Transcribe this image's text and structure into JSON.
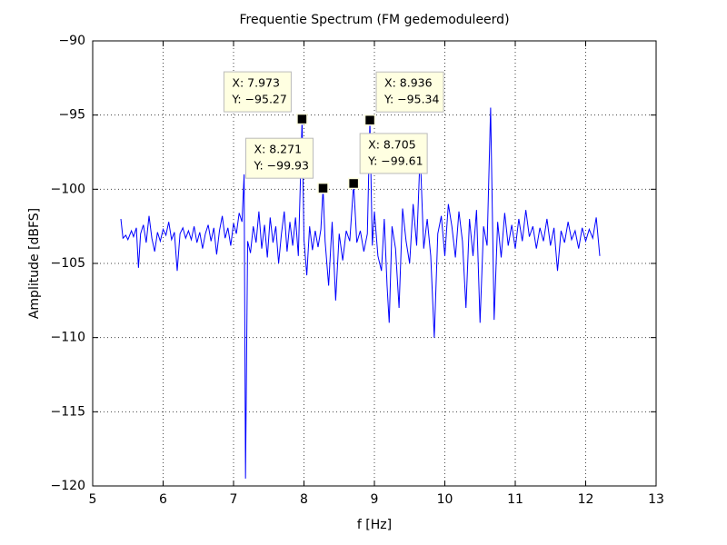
{
  "chart_data": {
    "type": "line",
    "title": "Frequentie Spectrum (FM gedemoduleerd)",
    "xlabel": "f [Hz]",
    "ylabel": "Amplitude [dBFS]",
    "xlim": [
      5,
      13
    ],
    "ylim": [
      -120,
      -90
    ],
    "xticks": [
      5,
      6,
      7,
      8,
      9,
      10,
      11,
      12,
      13
    ],
    "yticks": [
      {
        "value": -90,
        "label": "−90"
      },
      {
        "value": -95,
        "label": "−95"
      },
      {
        "value": -100,
        "label": "−100"
      },
      {
        "value": -105,
        "label": "−105"
      },
      {
        "value": -110,
        "label": "−110"
      },
      {
        "value": -115,
        "label": "−115"
      },
      {
        "value": -120,
        "label": "−120"
      }
    ],
    "grid": true,
    "x": [
      5.4,
      5.43,
      5.47,
      5.5,
      5.55,
      5.58,
      5.62,
      5.65,
      5.68,
      5.72,
      5.76,
      5.8,
      5.84,
      5.88,
      5.92,
      5.96,
      6.0,
      6.04,
      6.08,
      6.12,
      6.16,
      6.2,
      6.24,
      6.28,
      6.32,
      6.36,
      6.4,
      6.44,
      6.48,
      6.52,
      6.56,
      6.6,
      6.64,
      6.68,
      6.72,
      6.76,
      6.8,
      6.84,
      6.88,
      6.92,
      6.96,
      7.0,
      7.04,
      7.08,
      7.12,
      7.15,
      7.17,
      7.2,
      7.24,
      7.28,
      7.32,
      7.36,
      7.4,
      7.44,
      7.48,
      7.52,
      7.56,
      7.6,
      7.64,
      7.68,
      7.72,
      7.76,
      7.8,
      7.84,
      7.88,
      7.92,
      7.973,
      8.0,
      8.04,
      8.08,
      8.12,
      8.16,
      8.2,
      8.24,
      8.271,
      8.3,
      8.35,
      8.4,
      8.45,
      8.5,
      8.55,
      8.6,
      8.65,
      8.705,
      8.75,
      8.8,
      8.85,
      8.9,
      8.936,
      8.97,
      9.0,
      9.05,
      9.1,
      9.14,
      9.18,
      9.21,
      9.25,
      9.3,
      9.35,
      9.4,
      9.45,
      9.5,
      9.55,
      9.6,
      9.65,
      9.7,
      9.75,
      9.8,
      9.85,
      9.9,
      9.95,
      10.0,
      10.05,
      10.1,
      10.15,
      10.2,
      10.25,
      10.3,
      10.35,
      10.4,
      10.45,
      10.5,
      10.55,
      10.6,
      10.65,
      10.7,
      10.75,
      10.8,
      10.85,
      10.9,
      10.95,
      11.0,
      11.05,
      11.1,
      11.15,
      11.2,
      11.25,
      11.3,
      11.35,
      11.4,
      11.45,
      11.5,
      11.55,
      11.6,
      11.65,
      11.7,
      11.75,
      11.8,
      11.85,
      11.9,
      11.95,
      12.0,
      12.05,
      12.1,
      12.15,
      12.2
    ],
    "series": [
      {
        "color": "#0000ff",
        "values": [
          -102.0,
          -103.3,
          -103.1,
          -103.4,
          -102.8,
          -103.2,
          -102.6,
          -105.3,
          -103.0,
          -102.4,
          -103.6,
          -101.8,
          -103.3,
          -104.2,
          -102.9,
          -103.5,
          -102.7,
          -103.1,
          -102.2,
          -103.4,
          -102.9,
          -105.5,
          -103.0,
          -102.6,
          -103.3,
          -102.8,
          -103.4,
          -102.5,
          -103.6,
          -102.9,
          -104.0,
          -103.0,
          -102.4,
          -103.5,
          -102.6,
          -104.4,
          -102.8,
          -101.8,
          -103.3,
          -102.6,
          -103.8,
          -102.3,
          -103.0,
          -101.6,
          -102.2,
          -99.0,
          -119.5,
          -103.5,
          -104.3,
          -102.5,
          -103.6,
          -101.5,
          -104.0,
          -102.4,
          -104.6,
          -101.9,
          -103.6,
          -102.5,
          -105.0,
          -103.0,
          -101.5,
          -104.2,
          -102.2,
          -103.8,
          -101.9,
          -104.5,
          -95.27,
          -103.4,
          -105.8,
          -102.5,
          -104.1,
          -102.8,
          -103.9,
          -102.7,
          -99.93,
          -103.5,
          -106.5,
          -102.2,
          -107.5,
          -103.0,
          -104.8,
          -102.8,
          -103.5,
          -99.61,
          -103.6,
          -102.8,
          -104.2,
          -103.0,
          -95.34,
          -103.8,
          -101.5,
          -104.5,
          -105.5,
          -102.0,
          -106.5,
          -109.0,
          -102.5,
          -104.0,
          -108.0,
          -101.3,
          -103.5,
          -105.0,
          -101.0,
          -103.8,
          -97.5,
          -104.0,
          -102.0,
          -104.5,
          -110.0,
          -103.0,
          -101.8,
          -104.5,
          -101.0,
          -102.5,
          -104.6,
          -101.5,
          -103.5,
          -108.0,
          -102.0,
          -104.5,
          -101.4,
          -109.0,
          -102.5,
          -103.8,
          -94.5,
          -108.8,
          -102.2,
          -104.6,
          -101.6,
          -103.8,
          -102.4,
          -104.0,
          -102.0,
          -103.5,
          -101.4,
          -103.2,
          -102.5,
          -104.0,
          -102.6,
          -103.5,
          -102.0,
          -103.8,
          -102.6,
          -105.5,
          -102.8,
          -103.6,
          -102.2,
          -103.4,
          -102.8,
          -104.0,
          -102.6,
          -103.5,
          -102.7,
          -103.3,
          -101.9,
          -104.5
        ]
      }
    ],
    "datatips": [
      {
        "x": 7.973,
        "y": -95.27,
        "label_x": "X: 7.973",
        "label_y": "Y: −95.27"
      },
      {
        "x": 8.271,
        "y": -99.93,
        "label_x": "X: 8.271",
        "label_y": "Y: −99.93"
      },
      {
        "x": 8.705,
        "y": -99.61,
        "label_x": "X: 8.705",
        "label_y": "Y: −99.61"
      },
      {
        "x": 8.936,
        "y": -95.34,
        "label_x": "X: 8.936",
        "label_y": "Y: −95.34"
      }
    ]
  }
}
